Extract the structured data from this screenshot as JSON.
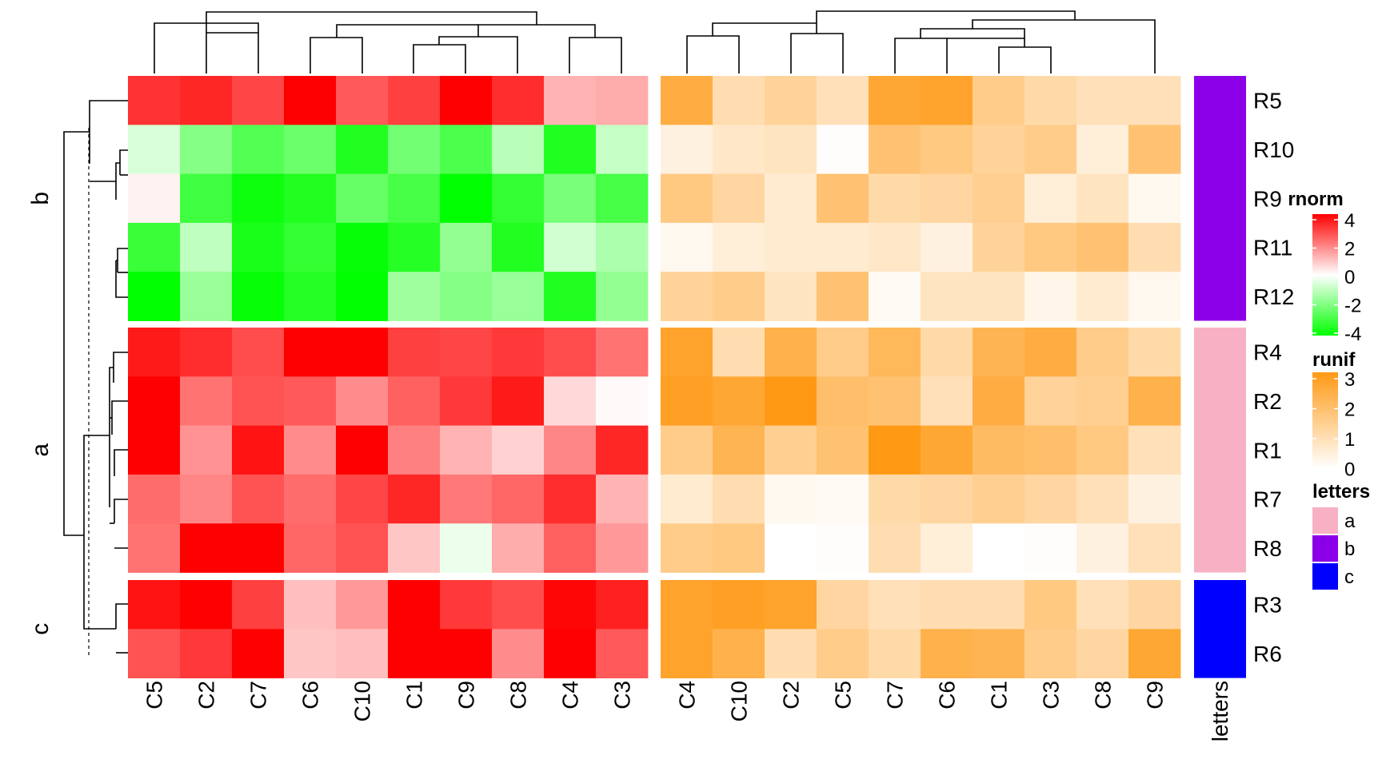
{
  "chart_data": {
    "type": "heatmap",
    "row_order": [
      "R5",
      "R10",
      "R9",
      "R11",
      "R12",
      "R4",
      "R2",
      "R1",
      "R7",
      "R8",
      "R3",
      "R6"
    ],
    "row_groups": [
      {
        "label": "b",
        "rows": [
          "R5",
          "R10",
          "R9",
          "R11",
          "R12"
        ],
        "letter_color": "#8b00e8"
      },
      {
        "label": "a",
        "rows": [
          "R4",
          "R2",
          "R1",
          "R7",
          "R8"
        ],
        "letter_color": "#f8b0c4"
      },
      {
        "label": "c",
        "rows": [
          "R3",
          "R6"
        ],
        "letter_color": "#0000ff"
      }
    ],
    "annotation_label": "letters",
    "heatmaps": [
      {
        "name": "rnorm",
        "columns": [
          "C5",
          "C2",
          "C7",
          "C6",
          "C10",
          "C1",
          "C9",
          "C8",
          "C4",
          "C3"
        ],
        "values": [
          [
            3.2,
            3.4,
            2.9,
            4.1,
            2.6,
            3.0,
            4.0,
            3.3,
            1.2,
            1.3
          ],
          [
            -0.6,
            -1.9,
            -2.7,
            -2.3,
            -3.5,
            -2.2,
            -2.8,
            -1.1,
            -3.5,
            -0.9
          ],
          [
            0.2,
            -3.0,
            -3.8,
            -3.5,
            -2.4,
            -2.9,
            -4.0,
            -3.2,
            -2.1,
            -2.9
          ],
          [
            -3.1,
            -1.0,
            -3.6,
            -3.2,
            -3.9,
            -3.4,
            -1.7,
            -3.5,
            -0.7,
            -1.3
          ],
          [
            -4.0,
            -1.6,
            -3.9,
            -3.4,
            -4.0,
            -1.5,
            -1.9,
            -1.6,
            -3.5,
            -1.7
          ],
          [
            3.6,
            3.3,
            2.8,
            4.2,
            4.3,
            3.0,
            2.9,
            3.1,
            2.8,
            2.2
          ],
          [
            4.1,
            2.2,
            2.7,
            2.6,
            1.8,
            2.5,
            3.1,
            3.6,
            0.6,
            0.1
          ],
          [
            4.3,
            1.7,
            3.7,
            1.8,
            4.3,
            2.0,
            1.2,
            0.7,
            1.9,
            3.4
          ],
          [
            2.3,
            1.9,
            2.7,
            2.3,
            2.9,
            3.4,
            2.1,
            2.4,
            3.3,
            1.2
          ],
          [
            2.2,
            4.2,
            4.3,
            2.4,
            2.7,
            0.9,
            -0.3,
            1.3,
            2.5,
            1.6
          ],
          [
            3.7,
            4.2,
            3.0,
            1.0,
            1.6,
            4.2,
            3.1,
            2.8,
            3.9,
            3.5
          ],
          [
            2.7,
            3.1,
            4.2,
            0.9,
            1.0,
            4.3,
            4.2,
            1.8,
            4.3,
            2.6
          ]
        ]
      },
      {
        "name": "runif",
        "columns": [
          "C4",
          "C10",
          "C2",
          "C5",
          "C7",
          "C6",
          "C1",
          "C3",
          "C8",
          "C9"
        ],
        "values": [
          [
            2.4,
            1.0,
            1.3,
            0.9,
            2.6,
            2.7,
            1.5,
            1.1,
            0.9,
            0.9
          ],
          [
            0.4,
            0.7,
            0.8,
            0.05,
            1.8,
            1.6,
            1.3,
            1.5,
            0.5,
            1.8
          ],
          [
            1.6,
            1.2,
            0.6,
            1.8,
            1.1,
            1.2,
            1.4,
            0.5,
            0.8,
            0.2
          ],
          [
            0.2,
            0.5,
            0.6,
            0.6,
            0.7,
            0.4,
            1.3,
            1.6,
            1.8,
            1.0
          ],
          [
            1.3,
            1.5,
            0.8,
            1.8,
            0.15,
            0.8,
            0.8,
            0.3,
            0.6,
            0.2
          ],
          [
            2.7,
            1.0,
            2.3,
            1.5,
            2.1,
            1.1,
            2.2,
            2.4,
            1.5,
            1.1
          ],
          [
            2.8,
            2.6,
            3.0,
            1.9,
            1.8,
            0.9,
            2.4,
            1.3,
            1.4,
            2.3
          ],
          [
            1.5,
            2.2,
            1.4,
            1.8,
            3.0,
            2.6,
            2.0,
            1.9,
            1.6,
            0.9
          ],
          [
            0.6,
            1.0,
            0.2,
            0.15,
            1.1,
            1.2,
            1.4,
            1.2,
            0.9,
            0.4
          ],
          [
            1.5,
            1.6,
            0.0,
            0.05,
            1.0,
            0.5,
            0.0,
            0.05,
            0.4,
            0.9
          ],
          [
            2.7,
            2.8,
            2.7,
            1.2,
            0.9,
            1.0,
            1.0,
            1.6,
            0.9,
            1.2
          ],
          [
            2.7,
            2.3,
            1.0,
            1.5,
            1.1,
            2.3,
            2.2,
            1.5,
            1.2,
            2.6
          ]
        ]
      }
    ],
    "legends": [
      {
        "title": "rnorm",
        "ticks": [
          "4",
          "2",
          "0",
          "-2",
          "-4"
        ],
        "range": [
          -4,
          4
        ],
        "colors": [
          "#00ff00",
          "#ffffff",
          "#ff0000"
        ]
      },
      {
        "title": "runif",
        "ticks": [
          "3",
          "2",
          "1",
          "0"
        ],
        "range": [
          0,
          3
        ],
        "colors": [
          "#ffffff",
          "#ff9914"
        ]
      },
      {
        "title": "letters",
        "items": [
          {
            "label": "a",
            "color": "#f8b0c4"
          },
          {
            "label": "b",
            "color": "#8b00e8"
          },
          {
            "label": "c",
            "color": "#0000ff"
          }
        ]
      }
    ]
  }
}
